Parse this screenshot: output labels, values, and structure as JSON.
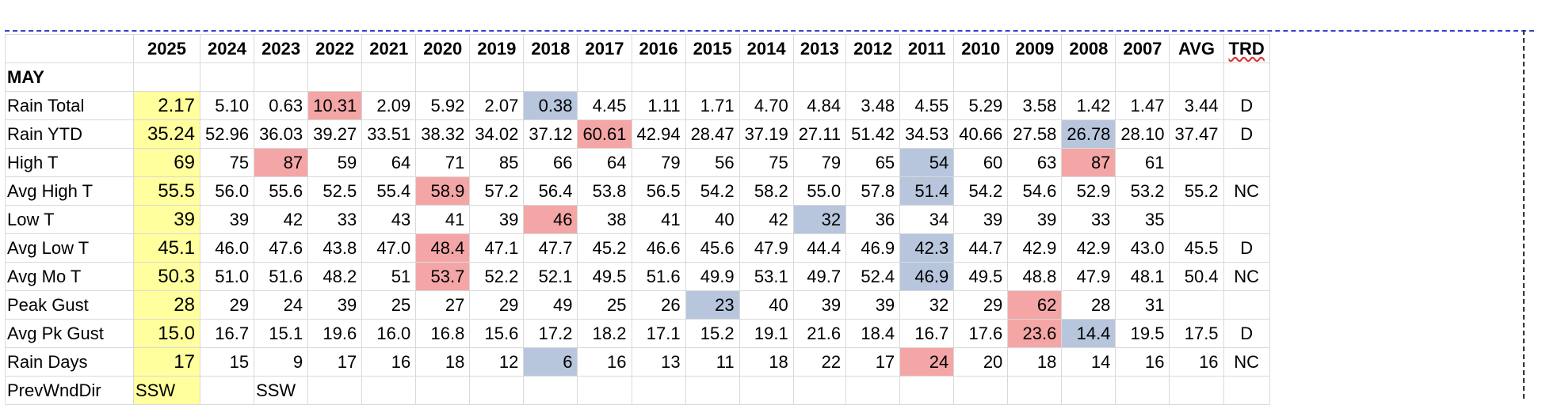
{
  "columns": [
    "",
    "2025",
    "2024",
    "2023",
    "2022",
    "2021",
    "2020",
    "2019",
    "2018",
    "2017",
    "2016",
    "2015",
    "2014",
    "2013",
    "2012",
    "2011",
    "2010",
    "2009",
    "2008",
    "2007",
    "AVG",
    "TRD"
  ],
  "section_label": "MAY",
  "rows": [
    {
      "label": "Rain Total",
      "values": [
        "2.17",
        "5.10",
        "0.63",
        "10.31",
        "2.09",
        "5.92",
        "2.07",
        "0.38",
        "4.45",
        "1.11",
        "1.71",
        "4.70",
        "4.84",
        "3.48",
        "4.55",
        "5.29",
        "3.58",
        "1.42",
        "1.47",
        "3.44",
        "D"
      ]
    },
    {
      "label": "Rain YTD",
      "values": [
        "35.24",
        "52.96",
        "36.03",
        "39.27",
        "33.51",
        "38.32",
        "34.02",
        "37.12",
        "60.61",
        "42.94",
        "28.47",
        "37.19",
        "27.11",
        "51.42",
        "34.53",
        "40.66",
        "27.58",
        "26.78",
        "28.10",
        "37.47",
        "D"
      ]
    },
    {
      "label": "High T",
      "values": [
        "69",
        "75",
        "87",
        "59",
        "64",
        "71",
        "85",
        "66",
        "64",
        "79",
        "56",
        "75",
        "79",
        "65",
        "54",
        "60",
        "63",
        "87",
        "61",
        "",
        ""
      ]
    },
    {
      "label": "Avg High T",
      "values": [
        "55.5",
        "56.0",
        "55.6",
        "52.5",
        "55.4",
        "58.9",
        "57.2",
        "56.4",
        "53.8",
        "56.5",
        "54.2",
        "58.2",
        "55.0",
        "57.8",
        "51.4",
        "54.2",
        "54.6",
        "52.9",
        "53.2",
        "55.2",
        "NC"
      ]
    },
    {
      "label": "Low T",
      "values": [
        "39",
        "39",
        "42",
        "33",
        "43",
        "41",
        "39",
        "46",
        "38",
        "41",
        "40",
        "42",
        "32",
        "36",
        "34",
        "39",
        "39",
        "33",
        "35",
        "",
        ""
      ]
    },
    {
      "label": "Avg Low T",
      "values": [
        "45.1",
        "46.0",
        "47.6",
        "43.8",
        "47.0",
        "48.4",
        "47.1",
        "47.7",
        "45.2",
        "46.6",
        "45.6",
        "47.9",
        "44.4",
        "46.9",
        "42.3",
        "44.7",
        "42.9",
        "42.9",
        "43.0",
        "45.5",
        "D"
      ]
    },
    {
      "label": "Avg Mo T",
      "values": [
        "50.3",
        "51.0",
        "51.6",
        "48.2",
        "51",
        "53.7",
        "52.2",
        "52.1",
        "49.5",
        "51.6",
        "49.9",
        "53.1",
        "49.7",
        "52.4",
        "46.9",
        "49.5",
        "48.8",
        "47.9",
        "48.1",
        "50.4",
        "NC"
      ]
    },
    {
      "label": "Peak Gust",
      "values": [
        "28",
        "29",
        "24",
        "39",
        "25",
        "27",
        "29",
        "49",
        "25",
        "26",
        "23",
        "40",
        "39",
        "39",
        "32",
        "29",
        "62",
        "28",
        "31",
        "",
        ""
      ]
    },
    {
      "label": "Avg Pk Gust",
      "values": [
        "15.0",
        "16.7",
        "15.1",
        "19.6",
        "16.0",
        "16.8",
        "15.6",
        "17.2",
        "18.2",
        "17.1",
        "15.2",
        "19.1",
        "21.6",
        "18.4",
        "16.7",
        "17.6",
        "23.6",
        "14.4",
        "19.5",
        "17.5",
        "D"
      ]
    },
    {
      "label": "Rain Days",
      "values": [
        "17",
        "15",
        "9",
        "17",
        "16",
        "18",
        "12",
        "6",
        "16",
        "13",
        "11",
        "18",
        "22",
        "17",
        "24",
        "20",
        "18",
        "14",
        "16",
        "16",
        "NC"
      ]
    },
    {
      "label": "PrevWndDir",
      "values": [
        "SSW",
        "",
        "SSW",
        "",
        "",
        "",
        "",
        "",
        "",
        "",
        "",
        "",
        "",
        "",
        "",
        "",
        "",
        "",
        "",
        "",
        ""
      ]
    }
  ],
  "highlights": {
    "yellow_col": 0,
    "red": [
      [
        0,
        3
      ],
      [
        1,
        8
      ],
      [
        2,
        2
      ],
      [
        2,
        17
      ],
      [
        3,
        5
      ],
      [
        4,
        7
      ],
      [
        5,
        5
      ],
      [
        6,
        5
      ],
      [
        7,
        16
      ],
      [
        8,
        16
      ],
      [
        9,
        14
      ]
    ],
    "blue": [
      [
        0,
        7
      ],
      [
        1,
        17
      ],
      [
        2,
        14
      ],
      [
        3,
        14
      ],
      [
        4,
        12
      ],
      [
        5,
        14
      ],
      [
        6,
        14
      ],
      [
        7,
        10
      ],
      [
        8,
        17
      ],
      [
        9,
        7
      ]
    ]
  },
  "colors": {
    "yellow": "#ffff9e",
    "red": "#f4a6a6",
    "blue": "#b7c6dd",
    "grid": "#d9d9d9"
  }
}
